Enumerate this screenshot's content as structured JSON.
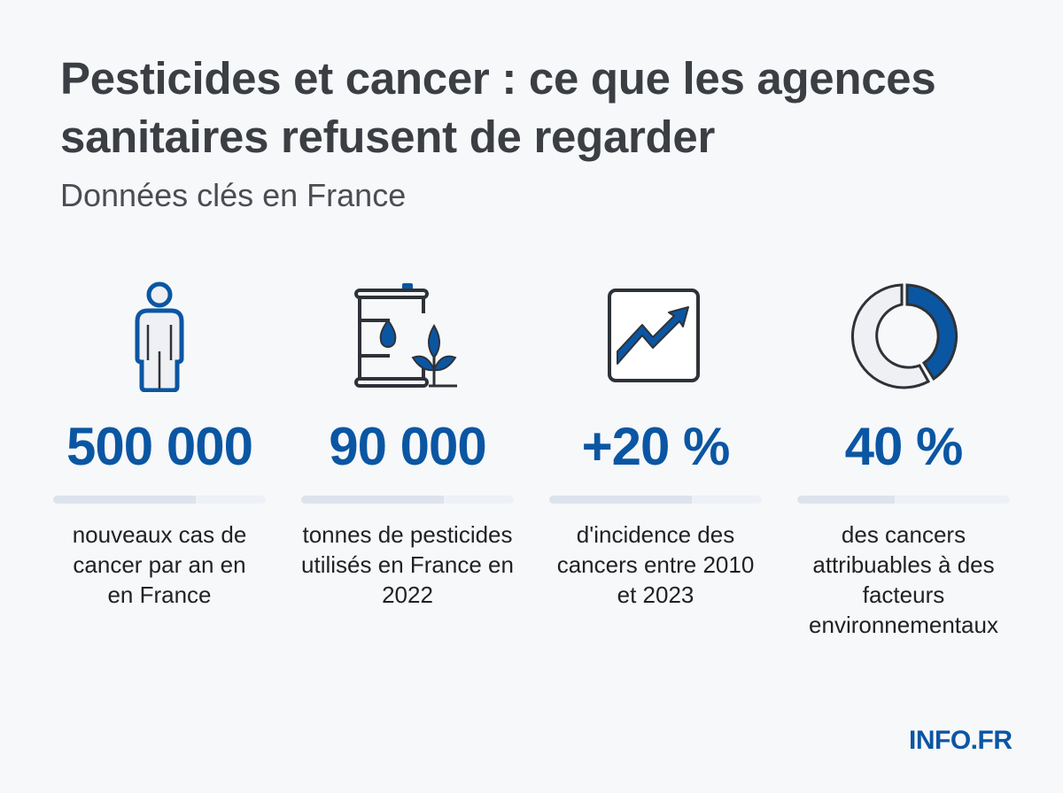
{
  "header": {
    "title": "Pesticides et cancer : ce que les agences sanitaires refusent de regarder",
    "subtitle": "Données clés en France"
  },
  "stats": [
    {
      "icon": "person-icon",
      "value": "500 000",
      "description": "nouveaux cas de cancer par an en en France",
      "bar_fill_percent": 67
    },
    {
      "icon": "pesticide-barrel-plant-icon",
      "value": "90 000",
      "description": "tonnes de pesticides utilisés en France en 2022",
      "bar_fill_percent": 67
    },
    {
      "icon": "trend-up-chart-icon",
      "value": "+20 %",
      "description": "d'incidence des cancers entre 2010 et 2023",
      "bar_fill_percent": 67
    },
    {
      "icon": "donut-chart-icon",
      "value": "40 %",
      "description": "des cancers attribuables à des facteurs environnementaux",
      "bar_fill_percent": 46
    }
  ],
  "footer": {
    "logo": "INFO.FR"
  },
  "colors": {
    "accent": "#0b56a3",
    "title": "#3b3e43",
    "background": "#f7f8fa",
    "bar_track": "#eef1f6",
    "bar_fill": "#dde3ed"
  }
}
